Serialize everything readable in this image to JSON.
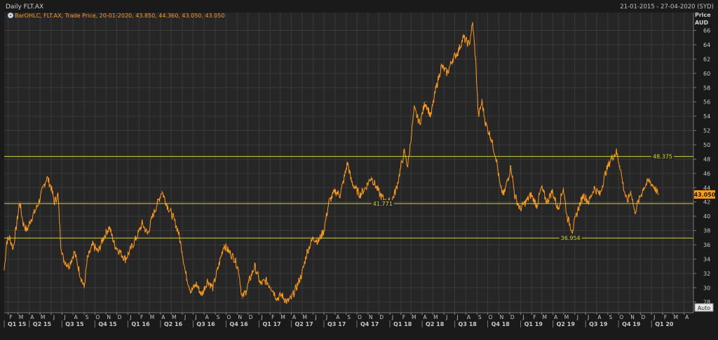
{
  "header": {
    "title": "Daily FLT.AX",
    "date_range": "21-01-2015 - 27-04-2020 (SYD)"
  },
  "legend": {
    "icon": "circle-dot-icon",
    "text": "BarOHLC, FLT.AX, Trade Price, 20-01-2020, 43.850, 44.360, 43.050, 43.050"
  },
  "axis": {
    "price_label": "Price",
    "currency_label": "AUD",
    "auto_label": "Auto"
  },
  "colors": {
    "background": "#1a1a1a",
    "plot_background": "#262626",
    "grid": "#3a3a3a",
    "series": "#ff9a1a",
    "hline": "#d4d42a",
    "last_price_badge": "#ff9a1a",
    "text": "#c8c8c8"
  },
  "chart_data": {
    "type": "line",
    "x_scale": "date",
    "x_range": [
      "2015-01-21",
      "2020-04-27"
    ],
    "ylim": [
      26.5,
      68.5
    ],
    "y_ticks": [
      28,
      30,
      32,
      34,
      36,
      38,
      40,
      42,
      44,
      46,
      48,
      50,
      52,
      54,
      56,
      58,
      60,
      62,
      64,
      66
    ],
    "grid": true,
    "series": [
      {
        "points": [
          [
            "2015-01-21",
            32.5
          ],
          [
            "2015-01-28",
            36.5
          ],
          [
            "2015-02-05",
            37.0
          ],
          [
            "2015-02-15",
            35.5
          ],
          [
            "2015-02-25",
            39.0
          ],
          [
            "2015-03-05",
            42.0
          ],
          [
            "2015-03-15",
            39.0
          ],
          [
            "2015-03-25",
            38.0
          ],
          [
            "2015-04-05",
            39.5
          ],
          [
            "2015-04-20",
            41.0
          ],
          [
            "2015-05-01",
            42.5
          ],
          [
            "2015-05-10",
            44.0
          ],
          [
            "2015-05-20",
            45.5
          ],
          [
            "2015-06-01",
            44.0
          ],
          [
            "2015-06-10",
            42.0
          ],
          [
            "2015-06-20",
            43.0
          ],
          [
            "2015-06-28",
            36.0
          ],
          [
            "2015-07-05",
            34.0
          ],
          [
            "2015-07-20",
            33.0
          ],
          [
            "2015-08-05",
            35.0
          ],
          [
            "2015-08-20",
            32.0
          ],
          [
            "2015-09-01",
            30.0
          ],
          [
            "2015-09-10",
            34.0
          ],
          [
            "2015-09-25",
            36.0
          ],
          [
            "2015-10-10",
            35.0
          ],
          [
            "2015-10-25",
            37.0
          ],
          [
            "2015-11-10",
            38.5
          ],
          [
            "2015-11-25",
            36.0
          ],
          [
            "2015-12-10",
            35.0
          ],
          [
            "2015-12-25",
            34.0
          ],
          [
            "2016-01-10",
            35.5
          ],
          [
            "2016-01-25",
            37.0
          ],
          [
            "2016-02-10",
            39.0
          ],
          [
            "2016-02-25",
            37.5
          ],
          [
            "2016-03-10",
            40.0
          ],
          [
            "2016-03-25",
            42.0
          ],
          [
            "2016-04-05",
            43.5
          ],
          [
            "2016-04-20",
            41.5
          ],
          [
            "2016-05-05",
            40.0
          ],
          [
            "2016-05-20",
            38.0
          ],
          [
            "2016-06-01",
            35.0
          ],
          [
            "2016-06-10",
            32.0
          ],
          [
            "2016-06-25",
            29.5
          ],
          [
            "2016-07-10",
            30.5
          ],
          [
            "2016-07-25",
            29.0
          ],
          [
            "2016-08-10",
            31.0
          ],
          [
            "2016-08-25",
            30.0
          ],
          [
            "2016-09-10",
            33.0
          ],
          [
            "2016-09-25",
            36.0
          ],
          [
            "2016-10-10",
            35.0
          ],
          [
            "2016-10-25",
            34.0
          ],
          [
            "2016-11-05",
            32.5
          ],
          [
            "2016-11-15",
            28.5
          ],
          [
            "2016-11-25",
            29.5
          ],
          [
            "2016-12-05",
            31.0
          ],
          [
            "2016-12-20",
            33.0
          ],
          [
            "2017-01-05",
            30.5
          ],
          [
            "2017-01-20",
            31.0
          ],
          [
            "2017-02-05",
            30.0
          ],
          [
            "2017-02-20",
            28.5
          ],
          [
            "2017-03-05",
            29.0
          ],
          [
            "2017-03-20",
            28.0
          ],
          [
            "2017-04-01",
            28.5
          ],
          [
            "2017-04-15",
            30.0
          ],
          [
            "2017-05-01",
            32.0
          ],
          [
            "2017-05-15",
            35.0
          ],
          [
            "2017-06-01",
            37.0
          ],
          [
            "2017-06-15",
            36.5
          ],
          [
            "2017-07-01",
            38.0
          ],
          [
            "2017-07-15",
            42.0
          ],
          [
            "2017-08-01",
            43.5
          ],
          [
            "2017-08-15",
            43.0
          ],
          [
            "2017-08-25",
            45.0
          ],
          [
            "2017-09-05",
            47.5
          ],
          [
            "2017-09-15",
            45.0
          ],
          [
            "2017-09-25",
            44.0
          ],
          [
            "2017-10-10",
            43.0
          ],
          [
            "2017-10-25",
            44.0
          ],
          [
            "2017-11-10",
            45.5
          ],
          [
            "2017-11-25",
            44.0
          ],
          [
            "2017-12-05",
            43.0
          ],
          [
            "2017-12-20",
            42.0
          ],
          [
            "2018-01-05",
            42.0
          ],
          [
            "2018-01-20",
            44.0
          ],
          [
            "2018-02-01",
            47.0
          ],
          [
            "2018-02-10",
            49.0
          ],
          [
            "2018-02-20",
            47.0
          ],
          [
            "2018-03-01",
            51.0
          ],
          [
            "2018-03-10",
            55.0
          ],
          [
            "2018-03-25",
            53.0
          ],
          [
            "2018-04-10",
            56.0
          ],
          [
            "2018-04-25",
            54.0
          ],
          [
            "2018-05-10",
            58.0
          ],
          [
            "2018-05-25",
            61.0
          ],
          [
            "2018-06-10",
            60.0
          ],
          [
            "2018-06-25",
            62.0
          ],
          [
            "2018-07-10",
            63.0
          ],
          [
            "2018-07-25",
            65.0
          ],
          [
            "2018-08-10",
            64.0
          ],
          [
            "2018-08-20",
            67.0
          ],
          [
            "2018-08-28",
            62.0
          ],
          [
            "2018-09-05",
            54.0
          ],
          [
            "2018-09-15",
            56.0
          ],
          [
            "2018-09-25",
            53.0
          ],
          [
            "2018-10-10",
            51.0
          ],
          [
            "2018-10-25",
            48.0
          ],
          [
            "2018-11-05",
            44.0
          ],
          [
            "2018-11-15",
            43.0
          ],
          [
            "2018-11-25",
            45.0
          ],
          [
            "2018-12-05",
            47.0
          ],
          [
            "2018-12-15",
            43.0
          ],
          [
            "2018-12-30",
            41.0
          ],
          [
            "2019-01-15",
            42.0
          ],
          [
            "2019-01-30",
            43.0
          ],
          [
            "2019-02-15",
            41.5
          ],
          [
            "2019-02-28",
            44.0
          ],
          [
            "2019-03-15",
            42.0
          ],
          [
            "2019-03-30",
            43.5
          ],
          [
            "2019-04-15",
            41.0
          ],
          [
            "2019-04-30",
            44.0
          ],
          [
            "2019-05-10",
            40.0
          ],
          [
            "2019-05-25",
            38.0
          ],
          [
            "2019-06-10",
            41.0
          ],
          [
            "2019-06-25",
            43.0
          ],
          [
            "2019-07-10",
            42.0
          ],
          [
            "2019-07-25",
            44.0
          ],
          [
            "2019-08-10",
            43.0
          ],
          [
            "2019-08-25",
            46.0
          ],
          [
            "2019-09-10",
            48.0
          ],
          [
            "2019-09-25",
            49.0
          ],
          [
            "2019-10-05",
            47.0
          ],
          [
            "2019-10-15",
            44.0
          ],
          [
            "2019-10-25",
            42.0
          ],
          [
            "2019-11-05",
            43.5
          ],
          [
            "2019-11-15",
            40.5
          ],
          [
            "2019-11-25",
            42.0
          ],
          [
            "2019-12-10",
            44.0
          ],
          [
            "2019-12-25",
            45.0
          ],
          [
            "2020-01-10",
            44.0
          ],
          [
            "2020-01-20",
            43.05
          ]
        ]
      }
    ],
    "hlines": [
      {
        "value": 48.375,
        "label": "48.375",
        "label_date": "2020-02-01"
      },
      {
        "value": 41.771,
        "label": "41.771",
        "label_date": "2017-12-12"
      },
      {
        "value": 36.954,
        "label": "36.954",
        "label_date": "2019-05-20"
      }
    ],
    "last_price": {
      "value": 43.05,
      "label": "43.050"
    },
    "x_month_labels": [
      [
        "2015-02-01",
        "F"
      ],
      [
        "2015-03-01",
        "M"
      ],
      [
        "2015-04-01",
        "A"
      ],
      [
        "2015-05-01",
        "M"
      ],
      [
        "2015-06-01",
        "J"
      ],
      [
        "2015-07-01",
        "J"
      ],
      [
        "2015-08-01",
        "A"
      ],
      [
        "2015-09-01",
        "S"
      ],
      [
        "2015-10-01",
        "O"
      ],
      [
        "2015-11-01",
        "N"
      ],
      [
        "2015-12-01",
        "D"
      ],
      [
        "2016-01-01",
        "J"
      ],
      [
        "2016-02-01",
        "F"
      ],
      [
        "2016-03-01",
        "M"
      ],
      [
        "2016-04-01",
        "A"
      ],
      [
        "2016-05-01",
        "M"
      ],
      [
        "2016-06-01",
        "J"
      ],
      [
        "2016-07-01",
        "J"
      ],
      [
        "2016-08-01",
        "A"
      ],
      [
        "2016-09-01",
        "S"
      ],
      [
        "2016-10-01",
        "O"
      ],
      [
        "2016-11-01",
        "N"
      ],
      [
        "2016-12-01",
        "D"
      ],
      [
        "2017-01-01",
        "J"
      ],
      [
        "2017-02-01",
        "F"
      ],
      [
        "2017-03-01",
        "M"
      ],
      [
        "2017-04-01",
        "A"
      ],
      [
        "2017-05-01",
        "M"
      ],
      [
        "2017-06-01",
        "J"
      ],
      [
        "2017-07-01",
        "J"
      ],
      [
        "2017-08-01",
        "A"
      ],
      [
        "2017-09-01",
        "S"
      ],
      [
        "2017-10-01",
        "O"
      ],
      [
        "2017-11-01",
        "N"
      ],
      [
        "2017-12-01",
        "D"
      ],
      [
        "2018-01-01",
        "J"
      ],
      [
        "2018-02-01",
        "F"
      ],
      [
        "2018-03-01",
        "M"
      ],
      [
        "2018-04-01",
        "A"
      ],
      [
        "2018-05-01",
        "M"
      ],
      [
        "2018-06-01",
        "J"
      ],
      [
        "2018-07-01",
        "J"
      ],
      [
        "2018-08-01",
        "A"
      ],
      [
        "2018-09-01",
        "S"
      ],
      [
        "2018-10-01",
        "O"
      ],
      [
        "2018-11-01",
        "N"
      ],
      [
        "2018-12-01",
        "D"
      ],
      [
        "2019-01-01",
        "J"
      ],
      [
        "2019-02-01",
        "F"
      ],
      [
        "2019-03-01",
        "M"
      ],
      [
        "2019-04-01",
        "A"
      ],
      [
        "2019-05-01",
        "M"
      ],
      [
        "2019-06-01",
        "J"
      ],
      [
        "2019-07-01",
        "J"
      ],
      [
        "2019-08-01",
        "A"
      ],
      [
        "2019-09-01",
        "S"
      ],
      [
        "2019-10-01",
        "O"
      ],
      [
        "2019-11-01",
        "N"
      ],
      [
        "2019-12-01",
        "D"
      ],
      [
        "2020-01-01",
        "J"
      ],
      [
        "2020-02-01",
        "F"
      ],
      [
        "2020-03-01",
        "M"
      ],
      [
        "2020-04-01",
        "A"
      ]
    ],
    "x_quarter_labels": [
      [
        "2015-01-01",
        "Q1 15"
      ],
      [
        "2015-04-01",
        "Q2 15"
      ],
      [
        "2015-07-01",
        "Q3 15"
      ],
      [
        "2015-10-01",
        "Q4 15"
      ],
      [
        "2016-01-01",
        "Q1 16"
      ],
      [
        "2016-04-01",
        "Q2 16"
      ],
      [
        "2016-07-01",
        "Q3 16"
      ],
      [
        "2016-10-01",
        "Q4 16"
      ],
      [
        "2017-01-01",
        "Q1 17"
      ],
      [
        "2017-04-01",
        "Q2 17"
      ],
      [
        "2017-07-01",
        "Q3 17"
      ],
      [
        "2017-10-01",
        "Q4 17"
      ],
      [
        "2018-01-01",
        "Q1 18"
      ],
      [
        "2018-04-01",
        "Q2 18"
      ],
      [
        "2018-07-01",
        "Q3 18"
      ],
      [
        "2018-10-01",
        "Q4 18"
      ],
      [
        "2019-01-01",
        "Q1 19"
      ],
      [
        "2019-04-01",
        "Q2 19"
      ],
      [
        "2019-07-01",
        "Q3 19"
      ],
      [
        "2019-10-01",
        "Q4 19"
      ],
      [
        "2020-01-01",
        "Q1 20"
      ]
    ]
  }
}
